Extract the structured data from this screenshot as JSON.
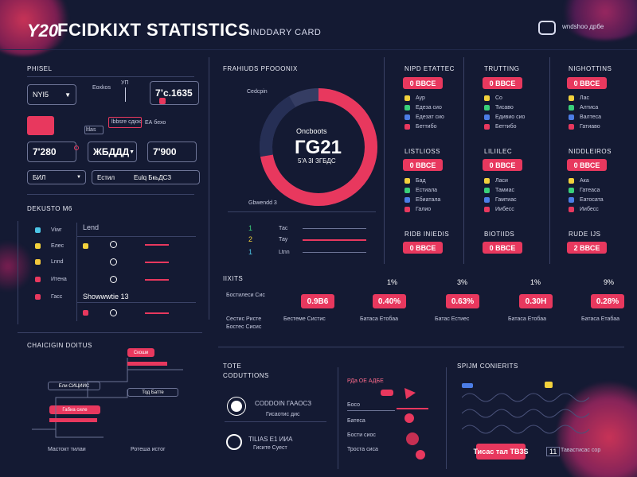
{
  "header": {
    "logo_text": "Y20",
    "title": "FCIDKIXT STATISTICS",
    "subtitle": "INDDARY CARD",
    "right_label": "wndshoo дрбе"
  },
  "left": {
    "section_title": "PHISEL",
    "select_value": "NYI5",
    "mid_label": "Eoxkos",
    "mid_sub": "УП",
    "value_box": "7’с.1635",
    "small_labels": [
      "ltlas",
      "lbbsге сдкхс",
      "ЕА бехо"
    ],
    "row2": [
      "7'280",
      "ЖБДДД",
      "7'900"
    ],
    "row3": [
      "БИЛ",
      "Естил",
      "Eulq БкьДСЗ"
    ]
  },
  "devices": {
    "title": "DEKUSTO M6",
    "col_header": "Lend",
    "items": [
      "Viwr",
      "Елес",
      "Lnnd",
      "Итена",
      "Гасс"
    ],
    "highlight": "Showwwtie 13"
  },
  "chart_section": {
    "title": "CHAICIGIN DOITUS",
    "labels": [
      "Скоши",
      "Ели СИЦИИС",
      "Тод Батте",
      "Габиа силе",
      "Мастокт тилаи",
      "Ротеша истог"
    ]
  },
  "donut": {
    "title": "FRAHIUDS PFOOONIX",
    "side_label": "Cedcpin",
    "center_top": "Oncboots",
    "center_value": "ГG21",
    "center_bottom": "5'A 3I  ЗГБДС",
    "legend_title": "Gbwendd  3",
    "legend": [
      {
        "num": "1",
        "label": "Тас"
      },
      {
        "num": "2",
        "label": "Тау"
      },
      {
        "num": "1",
        "label": "Ltnn"
      }
    ],
    "colors": {
      "main": "#e8385e",
      "dark": "#262f55",
      "track": "#353d63"
    }
  },
  "tables": [
    {
      "title": "NIPD ЕТАТТЕС",
      "value": "0  ВВСЕ",
      "rows": [
        "Аур",
        "Едеза сио",
        "Едезат сио",
        "Беттибо"
      ]
    },
    {
      "title": "TRUTTING",
      "value": "0  ВВСЕ",
      "rows": [
        "Со",
        "Тисаво",
        "Едивио сио",
        "Беттибо"
      ]
    },
    {
      "title": "NIGHOTTINS",
      "value": "0  ВВСЕ",
      "rows": [
        "Лас",
        "Алтиса",
        "Валтеса",
        "Гатиаво"
      ]
    },
    {
      "title": "LISTLIOSS",
      "value": "0  ВВСЕ",
      "rows": [
        "Бад",
        "Естиала",
        "Ебиатала",
        "Галио"
      ]
    },
    {
      "title": "LILIILЕС",
      "value": "0  ВВСЕ",
      "rows": [
        "Ласи",
        "Тамиас",
        "Гамтиас",
        "Иибесс"
      ]
    },
    {
      "title": "NIDDLEIROS",
      "value": "0  ВВСЕ",
      "rows": [
        "Ака",
        "Гатеаса",
        "Еатосата",
        "Иибесс"
      ]
    }
  ],
  "bottom_row_tables": [
    {
      "title": "RIDB INIEDIS",
      "value": "0  ВВСЕ"
    },
    {
      "title": "BIOTIIDS",
      "value": "0  ВВСЕ"
    },
    {
      "title": "RUDE IJS",
      "value": "2  ВВСЕ"
    }
  ],
  "stats": {
    "title": "IIXITS",
    "items": [
      {
        "pct": "",
        "value": "0.9B6",
        "label": "Бестеме Систис"
      },
      {
        "pct": "1%",
        "value": "0.40%",
        "label": "Батаса Етобаа"
      },
      {
        "pct": "3%",
        "value": "0.63%",
        "label": "Батас Естиес"
      },
      {
        "pct": "1%",
        "value": "0.30H",
        "label": "Батаса Етобаа"
      },
      {
        "pct": "9%",
        "value": "0.28%",
        "label": "Батаса Етабаа"
      }
    ],
    "left_labels": [
      "Бостилеси Сис",
      "Сестис Ристе",
      "Бостес Сисис"
    ]
  },
  "tote": {
    "title": "TOTE",
    "subtitle": "CODUTTIONS",
    "items": [
      "CODDOIN ГААОСЗ",
      "TILIAS E1 ИИА"
    ],
    "subs": [
      "Гисаотис дис",
      "Гисите Суест"
    ]
  },
  "middle_bottom": {
    "header": "РДа ОЕ АДБЕ",
    "rows": [
      "Босо",
      "Батеса",
      "Бости сиос",
      "Троста сиса"
    ]
  },
  "spot": {
    "title": "SPIJM CONIERITS",
    "pill": "Тисас тал  TB3S",
    "code": "11",
    "right_label": "Тавастисас сор"
  },
  "colors": {
    "bg": "#141a33",
    "accent": "#e8385e",
    "line": "#3a4266"
  }
}
